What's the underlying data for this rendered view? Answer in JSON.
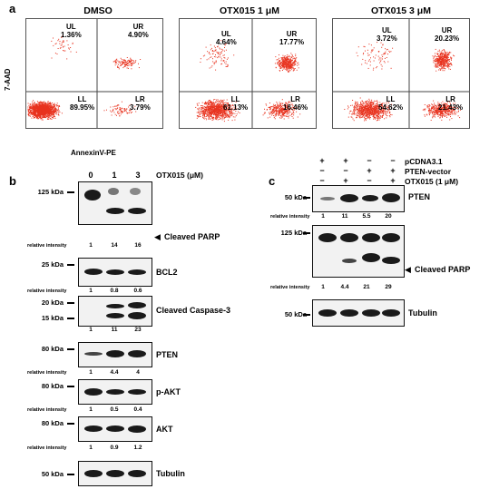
{
  "panel_a": {
    "letter": "a",
    "y_axis_label": "7-AAD",
    "x_axis_label": "AnnexinV-PE",
    "plots": [
      {
        "title": "DMSO",
        "UL": {
          "label": "UL",
          "value": "1.36%"
        },
        "UR": {
          "label": "UR",
          "value": "4.90%"
        },
        "LL": {
          "label": "LL",
          "value": "89.95%"
        },
        "LR": {
          "label": "LR",
          "value": "3.79%"
        }
      },
      {
        "title": "OTX015 1 μM",
        "UL": {
          "label": "UL",
          "value": "4.64%"
        },
        "UR": {
          "label": "UR",
          "value": "17.77%"
        },
        "LL": {
          "label": "LL",
          "value": "61.13%"
        },
        "LR": {
          "label": "LR",
          "value": "16.46%"
        }
      },
      {
        "title": "OTX015 3 μM",
        "UL": {
          "label": "UL",
          "value": "3.72%"
        },
        "UR": {
          "label": "UR",
          "value": "20.23%"
        },
        "LL": {
          "label": "LL",
          "value": "54.62%"
        },
        "LR": {
          "label": "LR",
          "value": "21.43%"
        }
      }
    ]
  },
  "panel_b": {
    "letter": "b",
    "lanes": [
      "0",
      "1",
      "3"
    ],
    "treatment": "OTX015 (μM)",
    "ri_label": "relative intensity",
    "blots": [
      {
        "kda": [
          "125 kDa"
        ],
        "protein": "Cleaved PARP",
        "arrow": true,
        "ri": [
          "1",
          "14",
          "16"
        ]
      },
      {
        "kda": [
          "25 kDa"
        ],
        "protein": "BCL2",
        "ri": [
          "1",
          "0.8",
          "0.6"
        ]
      },
      {
        "kda": [
          "20 kDa",
          "15 kDa"
        ],
        "protein": "Cleaved Caspase-3",
        "ri": [
          "1",
          "11",
          "23"
        ]
      },
      {
        "kda": [
          "80 kDa"
        ],
        "protein": "PTEN",
        "ri": [
          "1",
          "4.4",
          "4"
        ]
      },
      {
        "kda": [
          "80 kDa"
        ],
        "protein": "p-AKT",
        "ri": [
          "1",
          "0.5",
          "0.4"
        ]
      },
      {
        "kda": [
          "80 kDa"
        ],
        "protein": "AKT",
        "ri": [
          "1",
          "0.9",
          "1.2"
        ]
      },
      {
        "kda": [
          "50 kDa"
        ],
        "protein": "Tubulin",
        "ri": null
      }
    ]
  },
  "panel_c": {
    "letter": "c",
    "ri_label": "relative intensity",
    "conditions": [
      {
        "name": "pCDNA3.1",
        "signs": [
          "+",
          "+",
          "−",
          "−"
        ]
      },
      {
        "name": "PTEN-vector",
        "signs": [
          "−",
          "−",
          "+",
          "+"
        ]
      },
      {
        "name": "OTX015 (1 μM)",
        "signs": [
          "−",
          "+",
          "−",
          "+"
        ]
      }
    ],
    "blots": [
      {
        "kda": [
          "50 kDa"
        ],
        "protein": "PTEN",
        "ri": [
          "1",
          "11",
          "5.5",
          "20"
        ]
      },
      {
        "kda": [
          "125 kDa"
        ],
        "protein": "Cleaved PARP",
        "arrow": true,
        "ri": [
          "1",
          "4.4",
          "21",
          "29"
        ]
      },
      {
        "kda": [
          "50 kDa"
        ],
        "protein": "Tubulin",
        "ri": null
      }
    ]
  },
  "colors": {
    "dots": "#e8321e",
    "frame": "#555555"
  }
}
